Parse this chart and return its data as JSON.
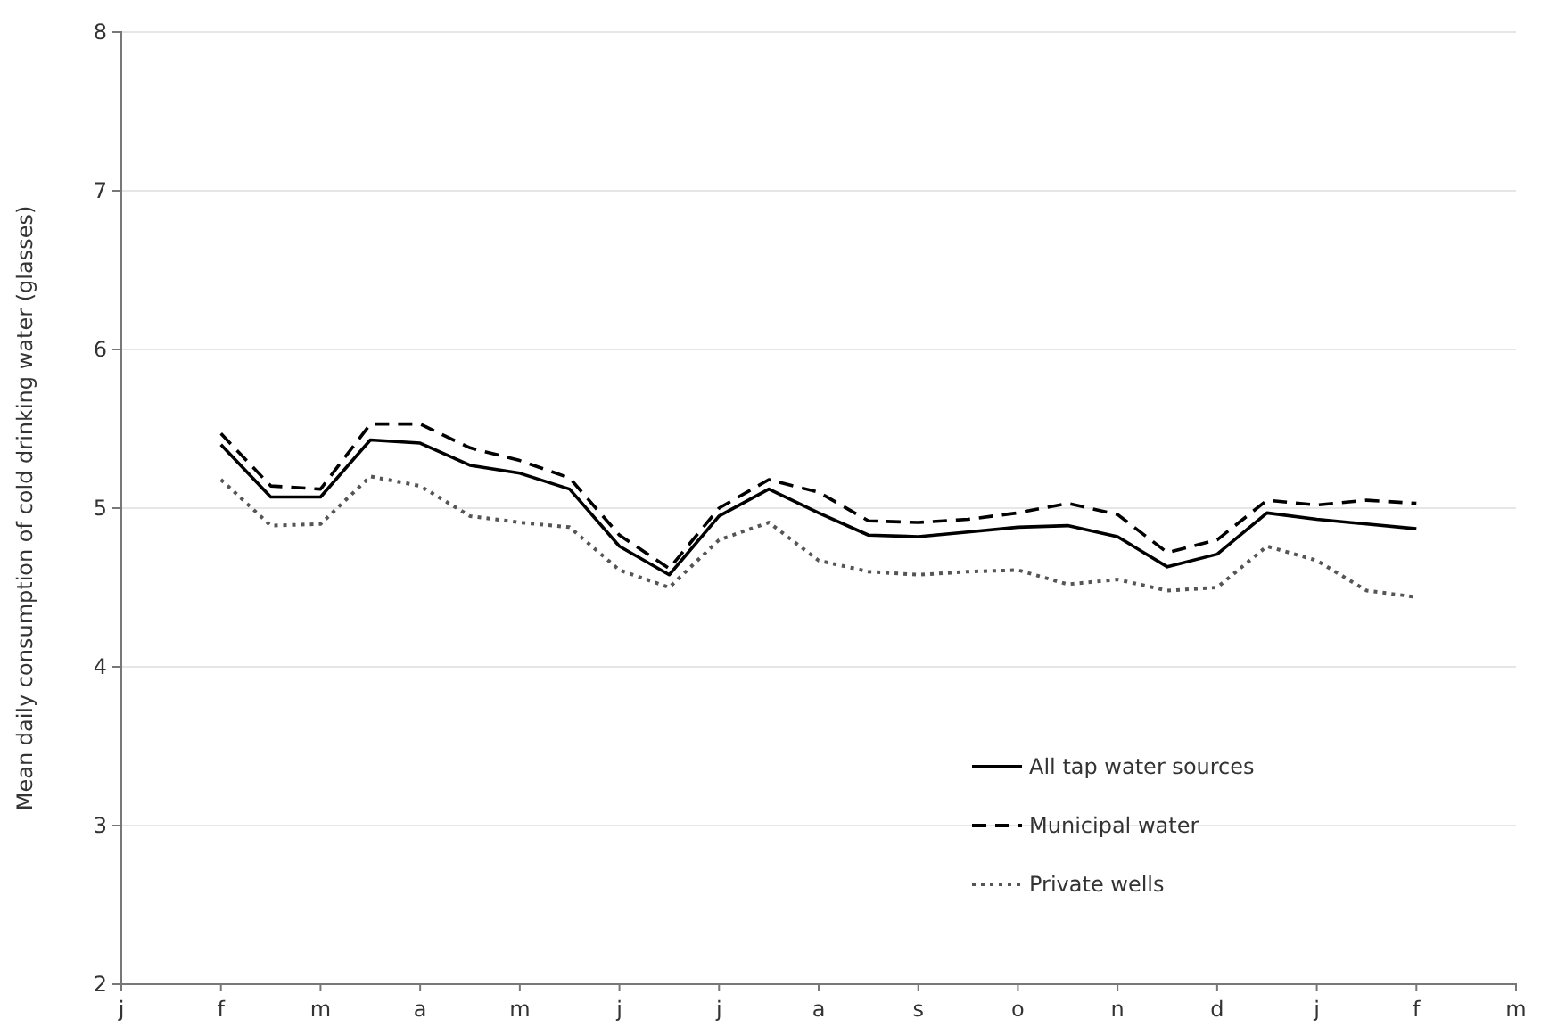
{
  "chart_data": {
    "type": "line",
    "ylabel": "Mean daily consumption of cold drinking water (glasses)",
    "categories": [
      "j",
      null,
      "f",
      null,
      "m",
      null,
      "a",
      null,
      "m",
      null,
      "j",
      null,
      "j",
      null,
      "a",
      null,
      "s",
      null,
      "o",
      null,
      "n",
      null,
      "d",
      null,
      "j",
      null,
      "f",
      null,
      "m"
    ],
    "ylim": [
      2,
      8
    ],
    "yticks": [
      2,
      3,
      4,
      5,
      6,
      7,
      8
    ],
    "grid": "y",
    "legend": "bottom right",
    "series": [
      {
        "name": "All tap water sources",
        "color": "#000000",
        "line_style": "solid",
        "values": [
          null,
          null,
          5.4,
          5.07,
          5.07,
          5.43,
          5.41,
          5.27,
          5.22,
          5.12,
          4.76,
          4.58,
          4.95,
          5.12,
          4.97,
          4.83,
          4.82,
          4.85,
          4.88,
          4.89,
          4.82,
          4.63,
          4.71,
          4.97,
          4.93,
          4.9,
          4.87,
          null,
          null
        ]
      },
      {
        "name": "Municipal water",
        "color": "#000000",
        "line_style": "dashed",
        "values": [
          null,
          null,
          5.47,
          5.14,
          5.12,
          5.53,
          5.53,
          5.38,
          5.3,
          5.19,
          4.83,
          4.62,
          5.0,
          5.18,
          5.1,
          4.92,
          4.91,
          4.93,
          4.97,
          5.03,
          4.96,
          4.72,
          4.8,
          5.05,
          5.02,
          5.05,
          5.03,
          null,
          null
        ]
      },
      {
        "name": "Private wells",
        "color": "#555555",
        "line_style": "dotted",
        "values": [
          null,
          null,
          5.18,
          4.89,
          4.9,
          5.2,
          5.14,
          4.95,
          4.91,
          4.88,
          4.61,
          4.5,
          4.8,
          4.91,
          4.67,
          4.6,
          4.58,
          4.6,
          4.61,
          4.52,
          4.55,
          4.48,
          4.5,
          4.76,
          4.67,
          4.48,
          4.44,
          null,
          null
        ]
      }
    ]
  }
}
